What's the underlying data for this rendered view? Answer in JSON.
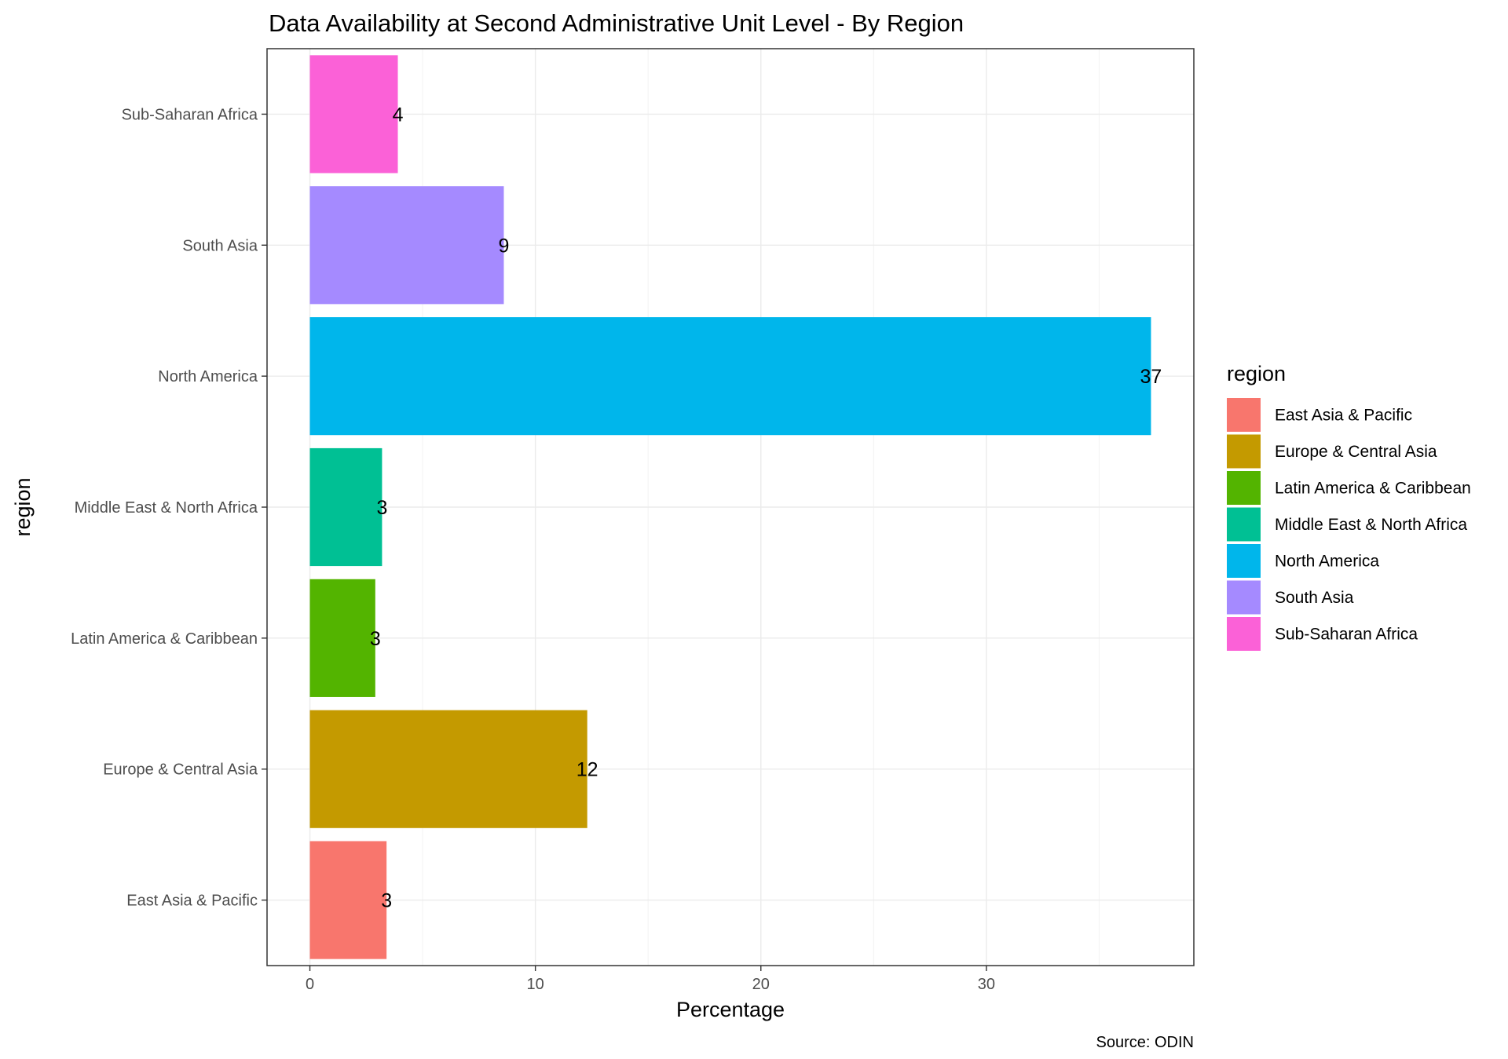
{
  "chart_data": {
    "type": "bar",
    "orientation": "horizontal",
    "title": "Data Availability at Second Administrative Unit Level - By Region",
    "xlabel": "Percentage",
    "ylabel": "region",
    "caption": "Source: ODIN",
    "categories": [
      "East Asia & Pacific",
      "Europe & Central Asia",
      "Latin America & Caribbean",
      "Middle East & North Africa",
      "North America",
      "South Asia",
      "Sub-Saharan Africa"
    ],
    "values": [
      3.4,
      12.3,
      2.9,
      3.2,
      37.3,
      8.6,
      3.9
    ],
    "labels": [
      "3",
      "12",
      "3",
      "3",
      "37",
      "9",
      "4"
    ],
    "colors": [
      "#F8766D",
      "#C49A00",
      "#53B400",
      "#00C094",
      "#00B6EB",
      "#A58AFF",
      "#FB61D7"
    ],
    "xticks": [
      0,
      10,
      20,
      30
    ],
    "xtick_labels": [
      "0",
      "10",
      "20",
      "30"
    ],
    "xlim": [
      -1.9,
      39.2
    ],
    "grid": true,
    "legend": {
      "title": "region",
      "position": "right",
      "entries": [
        "East Asia & Pacific",
        "Europe & Central Asia",
        "Latin America & Caribbean",
        "Middle East & North Africa",
        "North America",
        "South Asia",
        "Sub-Saharan Africa"
      ]
    }
  }
}
